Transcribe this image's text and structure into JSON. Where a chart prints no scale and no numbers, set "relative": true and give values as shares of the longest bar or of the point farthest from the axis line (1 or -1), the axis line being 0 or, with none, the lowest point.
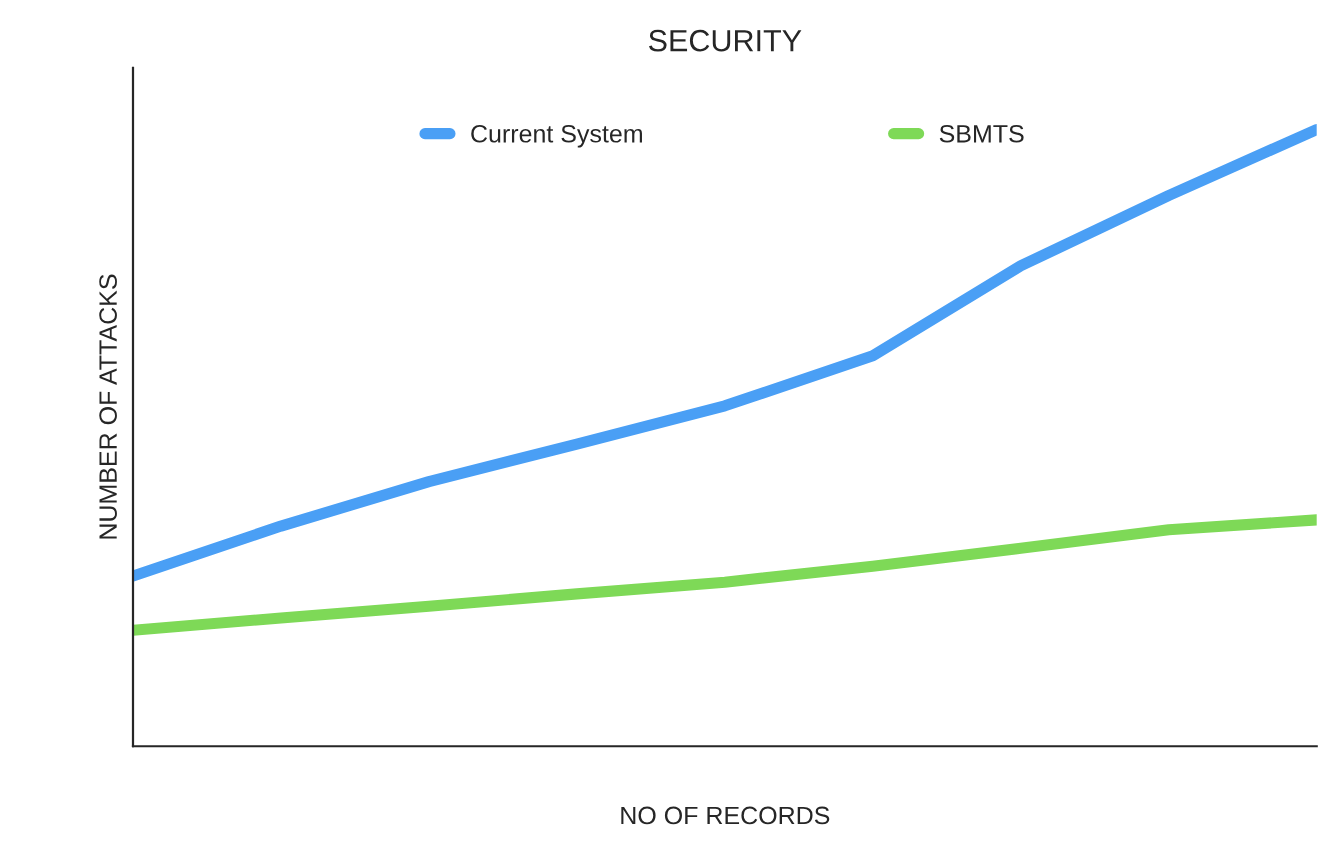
{
  "chart_data": {
    "type": "line",
    "title": "SECURITY",
    "xlabel": "NO OF RECORDS",
    "ylabel": "NUMBER OF ATTACKS",
    "relative": true,
    "legend": "top",
    "categories": [
      null,
      null,
      null,
      null,
      null,
      null,
      null,
      null,
      null
    ],
    "series": [
      {
        "name": "Current System",
        "color": "#4a9ff5",
        "values": [
          0.276,
          0.357,
          0.429,
          0.49,
          0.552,
          0.633,
          0.779,
          0.893,
          1
        ]
      },
      {
        "name": "SBMTS",
        "color": "#7ed957",
        "values": [
          0.188,
          0.208,
          0.227,
          0.247,
          0.266,
          0.292,
          0.321,
          0.351,
          0.367
        ]
      }
    ]
  }
}
